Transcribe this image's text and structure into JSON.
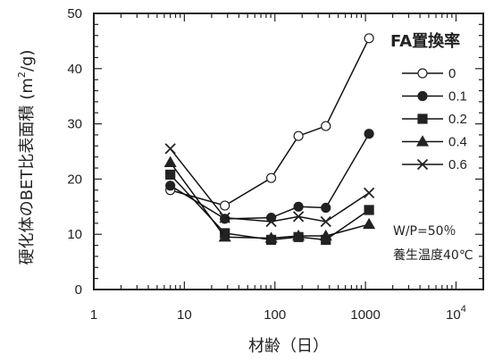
{
  "chart_data": {
    "type": "line",
    "xlabel": "材齢（日）",
    "ylabel": "硬化体のBET比表面積",
    "ylabel_unit": "(m",
    "ylabel_unit_sup": "2",
    "ylabel_unit_tail": "/g)",
    "xscale": "log",
    "xlim": [
      1,
      20000
    ],
    "ylim": [
      0,
      50
    ],
    "x_ticks": [
      {
        "value": 1,
        "label": "1"
      },
      {
        "value": 10,
        "label": "10"
      },
      {
        "value": 100,
        "label": "100"
      },
      {
        "value": 1000,
        "label": "1000"
      },
      {
        "value": 10000,
        "label": "10",
        "sup": "4"
      }
    ],
    "y_ticks": [
      0,
      10,
      20,
      30,
      40,
      50
    ],
    "legend_title": "FA置換率",
    "legend_position": "top-right",
    "annotations": [
      "W/P=50％",
      "養生温度40℃"
    ],
    "series": [
      {
        "name": "0",
        "marker": "circle-open",
        "x": [
          7,
          28,
          91,
          182,
          365,
          1095
        ],
        "y": [
          18,
          15.2,
          20.2,
          27.8,
          29.6,
          45.5
        ]
      },
      {
        "name": "0.1",
        "marker": "circle-filled",
        "x": [
          7,
          28,
          91,
          182,
          365,
          1095
        ],
        "y": [
          18.8,
          12.8,
          13,
          15,
          14.8,
          28.2
        ]
      },
      {
        "name": "0.2",
        "marker": "square",
        "x": [
          7,
          28,
          91,
          182,
          365,
          1095
        ],
        "y": [
          20.8,
          10.2,
          9,
          9.5,
          9,
          14.4
        ]
      },
      {
        "name": "0.4",
        "marker": "triangle",
        "x": [
          7,
          28,
          91,
          182,
          365,
          1095
        ],
        "y": [
          23,
          9.5,
          9.3,
          9.7,
          9.7,
          11.8
        ]
      },
      {
        "name": "0.6",
        "marker": "x",
        "x": [
          7,
          28,
          91,
          182,
          365,
          1095
        ],
        "y": [
          25.5,
          13,
          12.3,
          13.2,
          12.3,
          17.5
        ]
      }
    ]
  }
}
